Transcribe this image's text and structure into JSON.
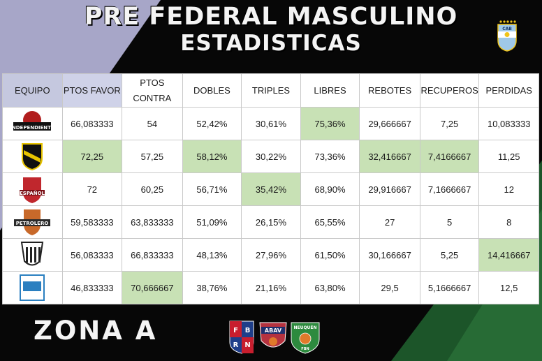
{
  "title_line1": "PRE FEDERAL MASCULINO",
  "title_line2": "ESTADISTICAS",
  "badge_text": "CAB",
  "footer_zone": "ZONA A",
  "columns": [
    "EQUIPO",
    "PTOS FAVOR",
    "PTOS CONTRA",
    "DOBLES",
    "TRIPLES",
    "LIBRES",
    "REBOTES",
    "RECUPEROS",
    "PERDIDAS"
  ],
  "rows": [
    {
      "logo_text": "INDEPENDIENTE",
      "logo_color": "#b11d1d",
      "values": [
        "66,083333",
        "54",
        "52,42%",
        "30,61%",
        "75,36%",
        "29,666667",
        "7,25",
        "10,083333"
      ],
      "highlight": [
        false,
        false,
        false,
        false,
        true,
        false,
        false,
        false
      ]
    },
    {
      "logo_text": "",
      "logo_color": "#e8c400",
      "values": [
        "72,25",
        "57,25",
        "58,12%",
        "30,22%",
        "73,36%",
        "32,416667",
        "7,4166667",
        "11,25"
      ],
      "highlight": [
        true,
        false,
        true,
        false,
        false,
        true,
        true,
        false
      ]
    },
    {
      "logo_text": "ESPAÑOL",
      "logo_color": "#c0272d",
      "values": [
        "72",
        "60,25",
        "56,71%",
        "35,42%",
        "68,90%",
        "29,916667",
        "7,1666667",
        "12"
      ],
      "highlight": [
        false,
        false,
        false,
        true,
        false,
        false,
        false,
        false
      ]
    },
    {
      "logo_text": "PETROLERO",
      "logo_color": "#c8692a",
      "values": [
        "59,583333",
        "63,833333",
        "51,09%",
        "26,15%",
        "65,55%",
        "27",
        "5",
        "8"
      ],
      "highlight": [
        false,
        false,
        false,
        false,
        false,
        false,
        false,
        false
      ]
    },
    {
      "logo_text": "",
      "logo_color": "#222222",
      "values": [
        "56,083333",
        "66,833333",
        "48,13%",
        "27,96%",
        "61,50%",
        "30,166667",
        "5,25",
        "14,416667"
      ],
      "highlight": [
        false,
        false,
        false,
        false,
        false,
        false,
        false,
        true
      ]
    },
    {
      "logo_text": "",
      "logo_color": "#2a7fc0",
      "values": [
        "46,833333",
        "70,666667",
        "38,76%",
        "21,16%",
        "63,80%",
        "29,5",
        "5,1666667",
        "12,5"
      ],
      "highlight": [
        false,
        true,
        false,
        false,
        false,
        false,
        false,
        false
      ]
    }
  ],
  "org_logos": [
    {
      "name": "fbrn-logo",
      "letters": [
        "F",
        "B",
        "R",
        "N"
      ]
    },
    {
      "name": "abav-logo",
      "text": "ABAV"
    },
    {
      "name": "fbn-logo",
      "text": "NEUQUÉN",
      "subtext": "FBN"
    }
  ],
  "colors": {
    "highlight": "#c8e1b5",
    "header_equipo": "#c5c8df",
    "background": "#070707",
    "accent_green": "#1e5a2c",
    "accent_lavender": "#cbcbe6"
  }
}
